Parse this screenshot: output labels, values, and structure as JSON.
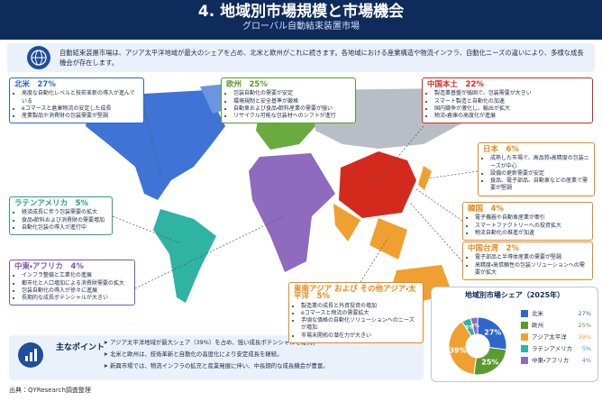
{
  "header": {
    "title": "4. 地域別市場規模と市場機会",
    "subtitle": "グローバル自動結束装置市場"
  },
  "intro": "自動結束装置市場は、アジア太平洋地域が最大のシェアを占め、北米と欧州がこれに続きます。各地域における産業構造や物流インフラ、自動化ニーズの違いにより、多様な成長機会が存在します。",
  "regions": [
    {
      "name": "北米",
      "share": "27%",
      "color": "#2f66c9",
      "points": [
        "高度な自動化レベルと技術革新の導入が進んでいる",
        "eコマースと倉庫物流の安定した成長",
        "産業製品や消費財の包装需要が堅調"
      ]
    },
    {
      "name": "欧州",
      "share": "25%",
      "color": "#5b9a32",
      "points": [
        "包装自動化の需要が安定",
        "環境規制と安全基準が厳格",
        "自動車および食品・飲料産業の需要が強い",
        "リサイクル可能な包装材へのシフトが進行"
      ]
    },
    {
      "name": "中国本土",
      "share": "22%",
      "color": "#d42a1e",
      "points": [
        "製造業基盤が強固で、包装需要が大きい",
        "スマート製造と自動化の加速",
        "国内競争が激化し、輸出が拡大",
        "物流・倉庫の高度化が進展"
      ]
    },
    {
      "name": "日本",
      "share": "6%",
      "color": "#e5891a",
      "points": [
        "成熟した市場で、高品質・高精度の包装ニーズが中心",
        "設備の更新需要が安定",
        "食品、電子部品、自動車などの産業で需要が堅調"
      ]
    },
    {
      "name": "韓国",
      "share": "4%",
      "color": "#e5891a",
      "points": [
        "電子機器や自動車産業が牽引",
        "スマートファクトリーへの投資拡大",
        "物流自動化の推進が加速"
      ]
    },
    {
      "name": "中国台湾",
      "share": "2%",
      "color": "#e5891a",
      "points": [
        "電子部品と半導体産業の需要が堅調",
        "高精度・高信頼性の包装ソリューションへの需要が拡大"
      ]
    },
    {
      "name": "東南アジア および その他アジア・太平洋",
      "share": "5%",
      "color": "#e5891a",
      "points": [
        "製造業の成長と外資投資の増加",
        "eコマースと物流の需要拡大",
        "手頃な価格の自動化ソリューションへのニーズが増加",
        "市場未開拓の潜在力が大きい"
      ]
    },
    {
      "name": "ラテンアメリカ",
      "share": "5%",
      "color": "#2a9f92",
      "points": [
        "経済成長に伴う包装需要の拡大",
        "食品・飲料および消費財の需要増加",
        "自動化包装の導入が進行中"
      ]
    },
    {
      "name": "中東・アフリカ",
      "share": "4%",
      "color": "#7b57b3",
      "points": [
        "インフラ整備と工業化の進展",
        "都市化と人口増加による消費財需要の拡大",
        "包装自動化の導入が徐々に進展",
        "長期的な成長ポテンシャルが大きい"
      ]
    }
  ],
  "key_points": {
    "title": "主なポイント",
    "items": [
      "アジア太平洋地域が最大シェア（39%）を占め、強い成長ポテンシャルを維持。",
      "北米と欧州は、技術革新と自動化の高度化により安定成長を継続。",
      "新興市場では、物流インフラの拡充と産業発展に伴い、中長期的な成長機会が豊富。"
    ]
  },
  "chart_data": {
    "type": "pie",
    "donut": true,
    "title": "地域別市場シェア（2025年）",
    "categories": [
      "北米",
      "欧州",
      "アジア太平洋",
      "ラテンアメリカ",
      "中東・アフリカ"
    ],
    "values": [
      27,
      25,
      39,
      5,
      4
    ],
    "value_labels": [
      "27%",
      "25%",
      "39%",
      "5%",
      "4%"
    ],
    "colors": [
      "#2f66c9",
      "#5b9a32",
      "#f0a030",
      "#2fb3a3",
      "#8e6bbf"
    ]
  },
  "source": "出典：QYResearch調査整理"
}
